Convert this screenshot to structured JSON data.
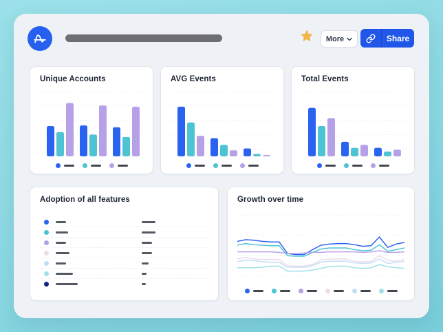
{
  "colors": {
    "blue": "#2b63f1",
    "teal": "#4ec3d3",
    "purple": "#b6a1e8",
    "pink": "#eddbe9",
    "pale_blue": "#c4ddf5",
    "pale_cyan": "#9fe1e7",
    "navy": "#17267d",
    "share_blue": "#2157e9",
    "star_gold": "#f1b54a",
    "logo_blue": "#2760ef",
    "pill_gray": "#6e6e72",
    "legend_dash": "#42464f",
    "redacted_bar": "#545862",
    "gridline": "#e9ebf1",
    "panel_bg": "#eef1f6",
    "frame_bg": "#8bd9e3"
  },
  "icons": {
    "logo": "amplitude-logo",
    "favorite": "star-icon",
    "more_chevron": "chevron-down-icon",
    "share_link": "link-icon"
  },
  "topbar": {
    "more_label": "More",
    "share_label": "Share"
  },
  "chart_data": [
    {
      "type": "bar",
      "title": "Unique Accounts",
      "categories": [
        "group-1",
        "group-2",
        "group-3"
      ],
      "series": [
        {
          "name": "series-blue",
          "color": "blue",
          "values": [
            50,
            51,
            48
          ]
        },
        {
          "name": "series-teal",
          "color": "teal",
          "values": [
            40,
            36,
            32
          ]
        },
        {
          "name": "series-purple",
          "color": "purple",
          "values": [
            88,
            84,
            82
          ]
        }
      ],
      "ylim": [
        0,
        100
      ],
      "grid": true,
      "legend_position": "bottom",
      "legend": [
        "blue",
        "teal",
        "purple"
      ]
    },
    {
      "type": "bar",
      "title": "AVG Events",
      "categories": [
        "group-1",
        "group-2",
        "group-3"
      ],
      "series": [
        {
          "name": "series-blue",
          "color": "blue",
          "values": [
            82,
            30,
            13
          ]
        },
        {
          "name": "series-teal",
          "color": "teal",
          "values": [
            56,
            19,
            4
          ]
        },
        {
          "name": "series-purple",
          "color": "purple",
          "values": [
            34,
            10,
            2
          ]
        }
      ],
      "ylim": [
        0,
        100
      ],
      "grid": true,
      "legend_position": "bottom",
      "legend": [
        "blue",
        "teal",
        "purple"
      ]
    },
    {
      "type": "bar",
      "title": "Total Events",
      "categories": [
        "group-1",
        "group-2",
        "group-3"
      ],
      "series": [
        {
          "name": "series-blue",
          "color": "blue",
          "values": [
            80,
            24,
            14
          ]
        },
        {
          "name": "series-teal",
          "color": "teal",
          "values": [
            50,
            14,
            8
          ]
        },
        {
          "name": "series-purple",
          "color": "purple",
          "values": [
            63,
            19,
            11
          ]
        }
      ],
      "ylim": [
        0,
        100
      ],
      "grid": true,
      "legend_position": "bottom",
      "legend": [
        "blue",
        "teal",
        "purple"
      ]
    },
    {
      "type": "table",
      "title": "Adoption of all features",
      "rows": [
        {
          "dot_color": "blue",
          "label_w": 15,
          "value_w": 20
        },
        {
          "dot_color": "teal",
          "label_w": 18,
          "value_w": 20
        },
        {
          "dot_color": "purple",
          "label_w": 15,
          "value_w": 15
        },
        {
          "dot_color": "pink",
          "label_w": 20,
          "value_w": 15
        },
        {
          "dot_color": "pale_blue",
          "label_w": 15,
          "value_w": 10
        },
        {
          "dot_color": "pale_cyan",
          "label_w": 25,
          "value_w": 7
        },
        {
          "dot_color": "navy",
          "label_w": 32,
          "value_w": 6
        }
      ]
    },
    {
      "type": "line",
      "title": "Growth over time",
      "x": [
        0,
        1,
        2,
        3,
        4,
        5,
        6,
        7,
        8,
        9,
        10,
        11,
        12,
        13,
        14,
        15,
        16,
        17,
        18,
        19,
        20
      ],
      "series": [
        {
          "name": "series-blue",
          "color": "blue",
          "values": [
            62,
            65,
            64,
            62,
            61,
            61,
            40,
            38,
            38,
            47,
            55,
            57,
            58,
            58,
            56,
            53,
            54,
            70,
            51,
            57,
            60
          ]
        },
        {
          "name": "series-teal",
          "color": "teal",
          "values": [
            55,
            58,
            56,
            55,
            54,
            54,
            36,
            35,
            35,
            42,
            48,
            50,
            50,
            50,
            47,
            45,
            46,
            56,
            44,
            47,
            50
          ]
        },
        {
          "name": "series-purple",
          "color": "purple",
          "values": [
            43,
            43,
            43,
            43,
            43,
            42,
            40,
            40,
            41,
            42,
            42,
            43,
            43,
            43,
            43,
            42,
            43,
            45,
            42,
            42,
            43
          ]
        },
        {
          "name": "series-pink",
          "color": "pink",
          "values": [
            30,
            33,
            30,
            29,
            29,
            29,
            18,
            17,
            17,
            20,
            28,
            30,
            30,
            30,
            26,
            25,
            26,
            36,
            28,
            26,
            30
          ]
        },
        {
          "name": "series-pale-blue",
          "color": "pale_blue",
          "values": [
            25,
            28,
            27,
            25,
            24,
            24,
            15,
            15,
            15,
            18,
            24,
            26,
            26,
            26,
            23,
            22,
            23,
            30,
            22,
            24,
            26
          ]
        },
        {
          "name": "series-pale-cyan",
          "color": "pale_cyan",
          "values": [
            14,
            14,
            14,
            15,
            17,
            17,
            8,
            8,
            8,
            10,
            13,
            16,
            17,
            17,
            14,
            13,
            14,
            20,
            16,
            14,
            13
          ]
        }
      ],
      "ylim": [
        0,
        100
      ],
      "grid": true,
      "legend_position": "bottom",
      "legend": [
        "blue",
        "teal",
        "purple",
        "pink",
        "pale_blue",
        "pale_cyan"
      ]
    }
  ]
}
